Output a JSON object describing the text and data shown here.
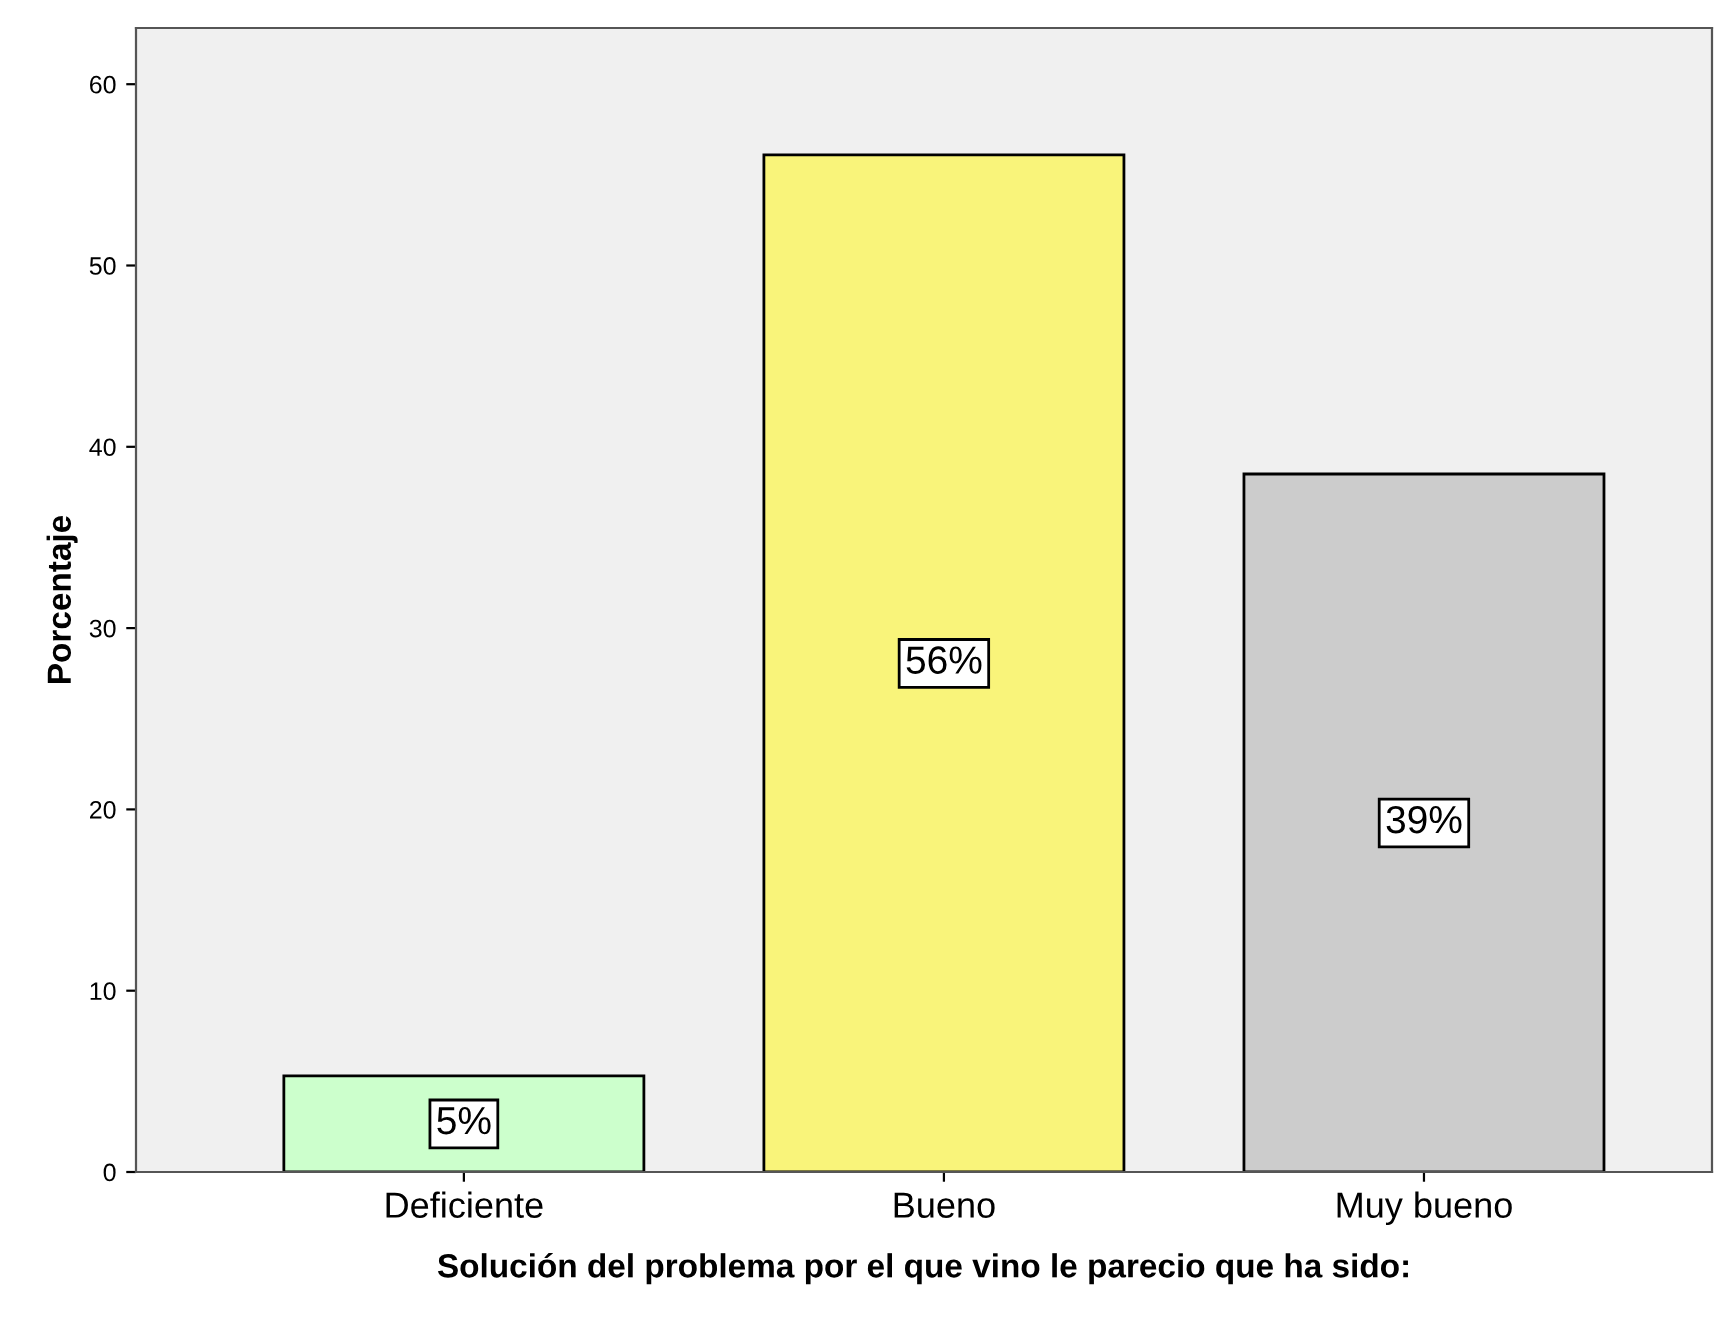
{
  "chart_data": {
    "type": "bar",
    "xlabel": "Solución del problema por el que vino le parecio que ha sido:",
    "ylabel": "Porcentaje",
    "categories": [
      "Deficiente",
      "Bueno",
      "Muy bueno"
    ],
    "values": [
      5.3,
      56.1,
      38.5
    ],
    "colors": [
      "#ccffcc",
      "#f9f47a",
      "#cccccc"
    ],
    "value_labels": [
      "5%",
      "56%",
      "39%"
    ],
    "ylim": [
      0,
      63.1
    ],
    "yticks": [
      0,
      10,
      20,
      30,
      40,
      50,
      60
    ],
    "grid": false,
    "legend": false
  }
}
